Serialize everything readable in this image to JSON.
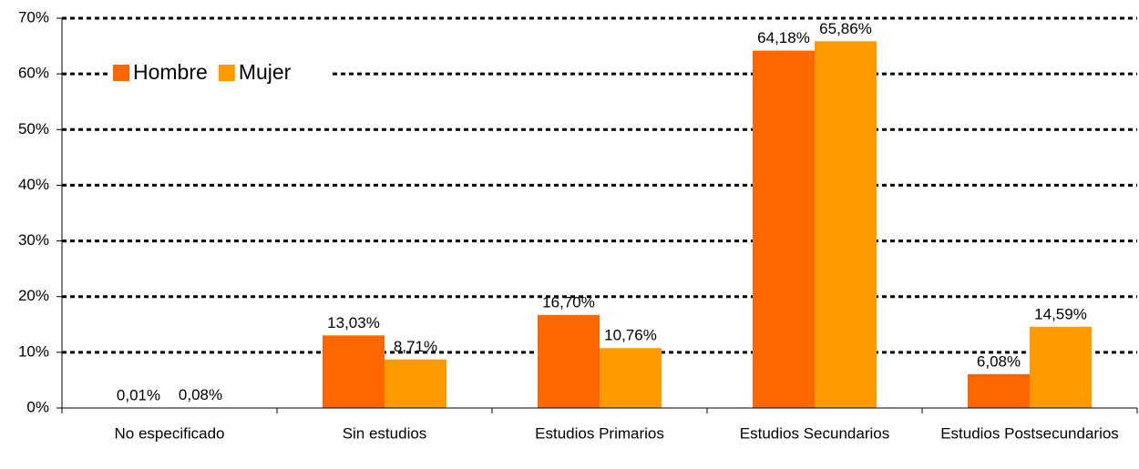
{
  "chart_data": {
    "type": "bar",
    "categories": [
      "No especificado",
      "Sin estudios",
      "Estudios Primarios",
      "Estudios Secundarios",
      "Estudios Postsecundarios"
    ],
    "series": [
      {
        "name": "Hombre",
        "color": "#ff6600",
        "values": [
          0.01,
          13.03,
          16.7,
          64.18,
          6.08
        ],
        "value_labels": [
          "0,01%",
          "13,03%",
          "16,70%",
          "64,18%",
          "6,08%"
        ]
      },
      {
        "name": "Mujer",
        "color": "#ff9900",
        "values": [
          0.08,
          8.71,
          10.76,
          65.86,
          14.59
        ],
        "value_labels": [
          "0,08%",
          "8,71%",
          "10,76%",
          "65,86%",
          "14,59%"
        ]
      }
    ],
    "ylim": [
      0,
      70
    ],
    "yticks": [
      {
        "value": 0,
        "label": "0%"
      },
      {
        "value": 10,
        "label": "10%"
      },
      {
        "value": 20,
        "label": "20%"
      },
      {
        "value": 30,
        "label": "30%"
      },
      {
        "value": 40,
        "label": "40%"
      },
      {
        "value": 50,
        "label": "50%"
      },
      {
        "value": 60,
        "label": "60%"
      },
      {
        "value": 70,
        "label": "70%"
      }
    ],
    "grid": true,
    "legend": "top-left"
  }
}
